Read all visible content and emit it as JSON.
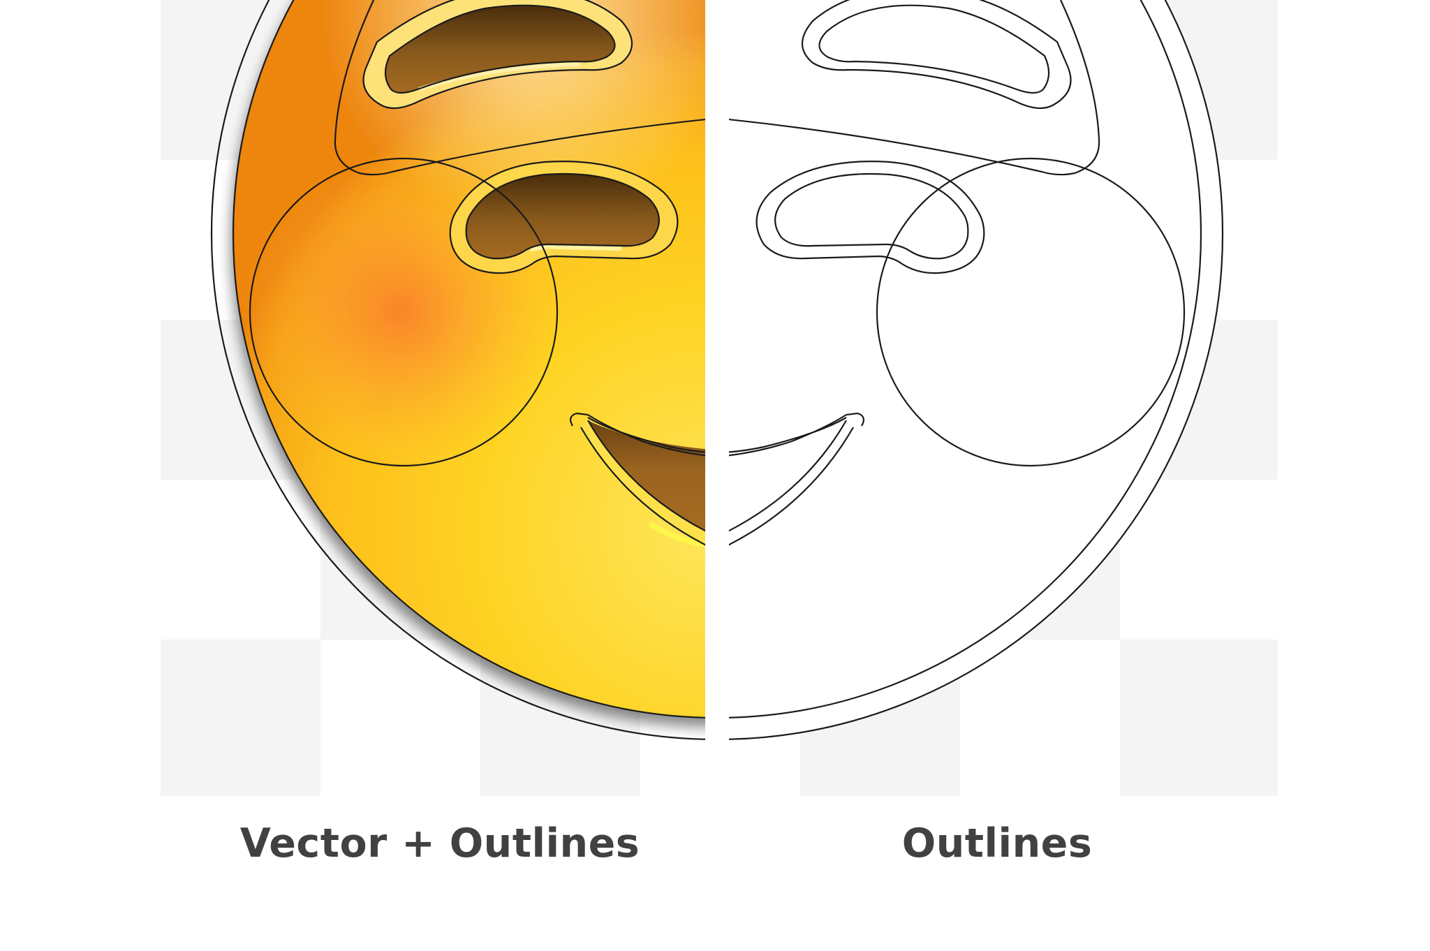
{
  "panels": {
    "left": {
      "caption": "Vector + Outlines"
    },
    "right": {
      "caption": "Outlines"
    }
  },
  "colors": {
    "checker_light": "#ffffff",
    "checker_dark": "#f4f4f4",
    "face_highlight": "#fee65a",
    "face_mid": "#fec823",
    "face_edge": "#f28a12",
    "blush": "#fa8a2e",
    "cutout_dark": "#5a3810",
    "cutout_mid": "#9d6620",
    "outline": "#1a1a1a",
    "caption_text": "#414141"
  }
}
